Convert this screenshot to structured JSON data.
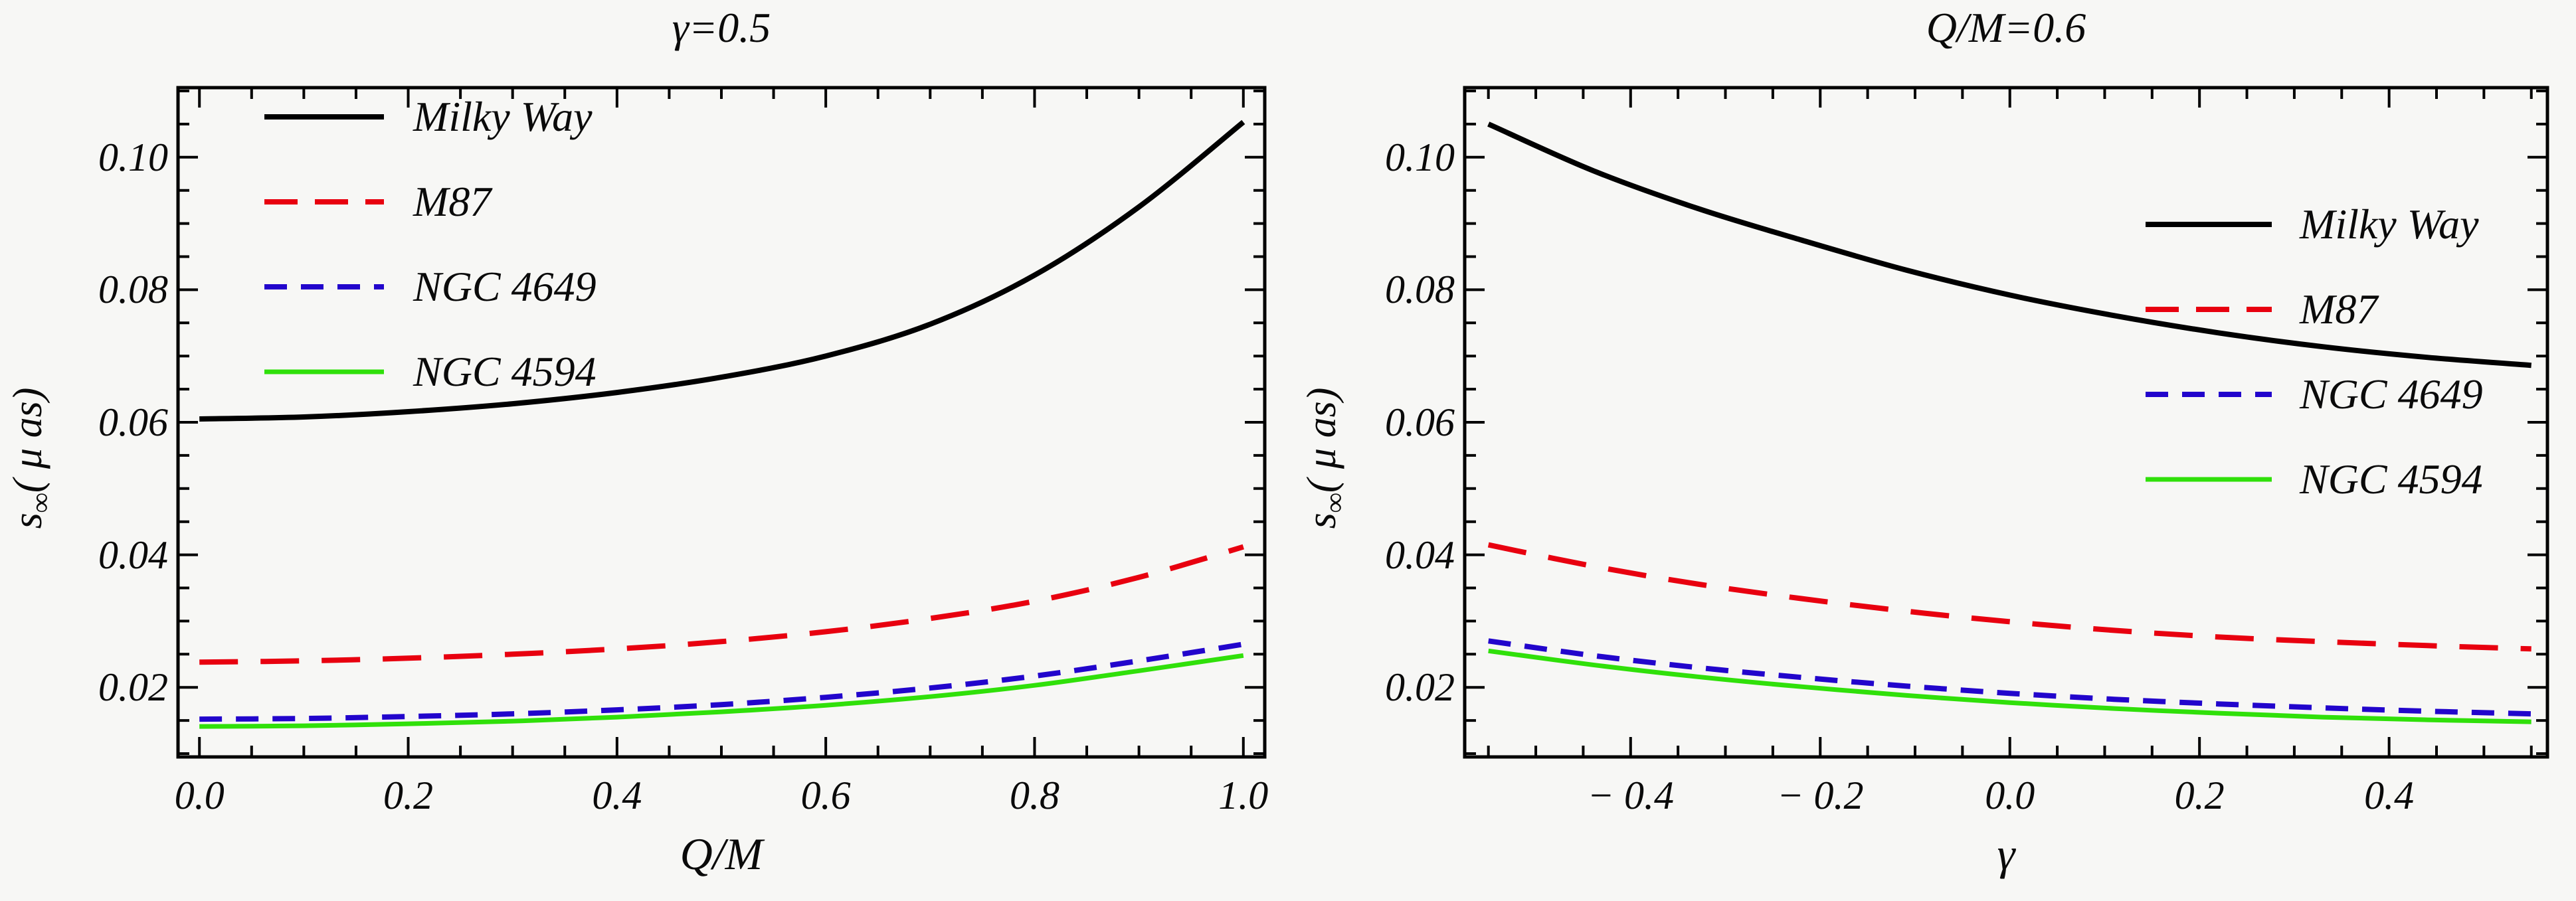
{
  "figure": {
    "background": "#f7f7f5",
    "frame_color": "#000000",
    "text_color": "#0a0a0a"
  },
  "chart_data": [
    {
      "type": "line",
      "title": "γ=0.5",
      "xlabel": "Q/M",
      "ylabel": "s∞( μ as)",
      "ylabel_parts": {
        "base": "s",
        "sub": "∞",
        "rest": "( μ as)"
      },
      "xlim": [
        -0.0205,
        1.0205
      ],
      "ylim": [
        0.0095,
        0.1105
      ],
      "grid": false,
      "legend_position": "top-left",
      "xticks": {
        "major": [
          0.0,
          0.2,
          0.4,
          0.6,
          0.8,
          1.0
        ],
        "labels": [
          "0.0",
          "0.2",
          "0.4",
          "0.6",
          "0.8",
          "1.0"
        ],
        "minor_step": 0.05,
        "minor_range": [
          0.0,
          1.0
        ]
      },
      "yticks": {
        "major": [
          0.02,
          0.04,
          0.06,
          0.08,
          0.1
        ],
        "labels": [
          "0.02",
          "0.04",
          "0.06",
          "0.08",
          "0.10"
        ],
        "minor_step": 0.005,
        "minor_range": [
          0.01,
          0.11
        ]
      },
      "x": [
        0.0,
        0.1,
        0.2,
        0.3,
        0.4,
        0.5,
        0.6,
        0.7,
        0.8,
        0.9,
        1.0
      ],
      "series": [
        {
          "name": "Milky Way",
          "color": "#000000",
          "style": "solid",
          "values": [
            0.0605,
            0.0608,
            0.0616,
            0.0628,
            0.0645,
            0.0668,
            0.07,
            0.0748,
            0.0822,
            0.0925,
            0.1053
          ]
        },
        {
          "name": "M87",
          "color": "#e8000f",
          "style": "dashed-long",
          "values": [
            0.0238,
            0.024,
            0.0244,
            0.025,
            0.0258,
            0.0269,
            0.0284,
            0.0304,
            0.033,
            0.0366,
            0.0412
          ]
        },
        {
          "name": "NGC 4649",
          "color": "#2205cc",
          "style": "dashed-short",
          "values": [
            0.0152,
            0.0153,
            0.0156,
            0.016,
            0.0166,
            0.0174,
            0.0185,
            0.0199,
            0.0217,
            0.024,
            0.0265
          ]
        },
        {
          "name": "NGC 4594",
          "color": "#30e00a",
          "style": "solid",
          "values": [
            0.0141,
            0.0142,
            0.0145,
            0.0149,
            0.0155,
            0.0163,
            0.0173,
            0.0186,
            0.0203,
            0.0225,
            0.0248
          ]
        }
      ]
    },
    {
      "type": "line",
      "title": "Q/M=0.6",
      "xlabel": "γ",
      "ylabel": "s∞( μ as)",
      "ylabel_parts": {
        "base": "s",
        "sub": "∞",
        "rest": "( μ as)"
      },
      "xlim": [
        -0.575,
        0.567
      ],
      "ylim": [
        0.0095,
        0.1105
      ],
      "grid": false,
      "legend_position": "middle-right",
      "xticks": {
        "major": [
          -0.4,
          -0.2,
          0.0,
          0.2,
          0.4
        ],
        "labels": [
          "− 0.4",
          "− 0.2",
          "0.0",
          "0.2",
          "0.4"
        ],
        "minor_step": 0.05,
        "minor_range": [
          -0.55,
          0.55
        ]
      },
      "yticks": {
        "major": [
          0.02,
          0.04,
          0.06,
          0.08,
          0.1
        ],
        "labels": [
          "0.02",
          "0.04",
          "0.06",
          "0.08",
          "0.10"
        ],
        "minor_step": 0.005,
        "minor_range": [
          0.01,
          0.11
        ]
      },
      "x": [
        -0.55,
        -0.44,
        -0.33,
        -0.22,
        -0.11,
        0.0,
        0.11,
        0.22,
        0.33,
        0.44,
        0.55
      ],
      "series": [
        {
          "name": "Milky Way",
          "color": "#000000",
          "style": "solid",
          "values": [
            0.105,
            0.098,
            0.0923,
            0.0875,
            0.083,
            0.0792,
            0.0761,
            0.0735,
            0.0714,
            0.0698,
            0.0686
          ]
        },
        {
          "name": "M87",
          "color": "#e8000f",
          "style": "dashed-long",
          "values": [
            0.0415,
            0.0383,
            0.0356,
            0.0334,
            0.0315,
            0.0299,
            0.0286,
            0.0276,
            0.0269,
            0.0263,
            0.0258
          ]
        },
        {
          "name": "NGC 4649",
          "color": "#2205cc",
          "style": "dashed-short",
          "values": [
            0.027,
            0.0248,
            0.023,
            0.0215,
            0.0202,
            0.0191,
            0.0182,
            0.0175,
            0.0169,
            0.0164,
            0.016
          ]
        },
        {
          "name": "NGC 4594",
          "color": "#30e00a",
          "style": "solid",
          "values": [
            0.0255,
            0.0234,
            0.0216,
            0.0201,
            0.0188,
            0.0177,
            0.0168,
            0.0161,
            0.0155,
            0.0151,
            0.0148
          ]
        }
      ]
    }
  ]
}
